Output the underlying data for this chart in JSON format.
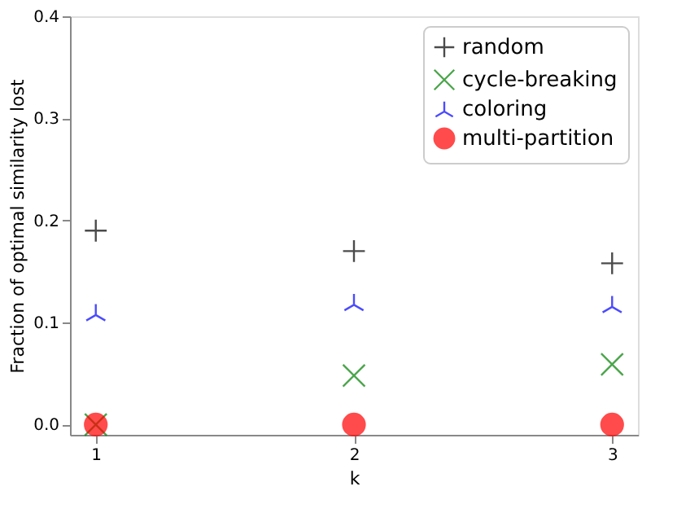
{
  "chart_data": {
    "type": "scatter",
    "xlabel": "k",
    "ylabel": "Fraction of optimal similarity lost",
    "x": [
      1,
      2,
      3
    ],
    "xlim": [
      0.9,
      3.1
    ],
    "xticks": [
      1,
      2,
      3
    ],
    "ylim": [
      -0.01,
      0.4
    ],
    "yticks": [
      {
        "value": 0,
        "label": "0.0"
      },
      0.1,
      0.2,
      0.3,
      0.4
    ],
    "grid": false,
    "legend": "top right",
    "series": [
      {
        "name": "random",
        "color": "#000000",
        "marker": "cross",
        "values": [
          0.19,
          0.17,
          0.158
        ]
      },
      {
        "name": "cycle-breaking",
        "color": "#008000",
        "marker": "x",
        "values": [
          0.0,
          0.048,
          0.059
        ]
      },
      {
        "name": "coloring",
        "color": "#0000ff",
        "values": [
          0.11,
          0.12,
          0.118
        ]
      },
      {
        "name": "multi-partition",
        "color": "#ff0000",
        "marker": "circle",
        "values": [
          0.0,
          0.0,
          0.0
        ]
      }
    ]
  }
}
